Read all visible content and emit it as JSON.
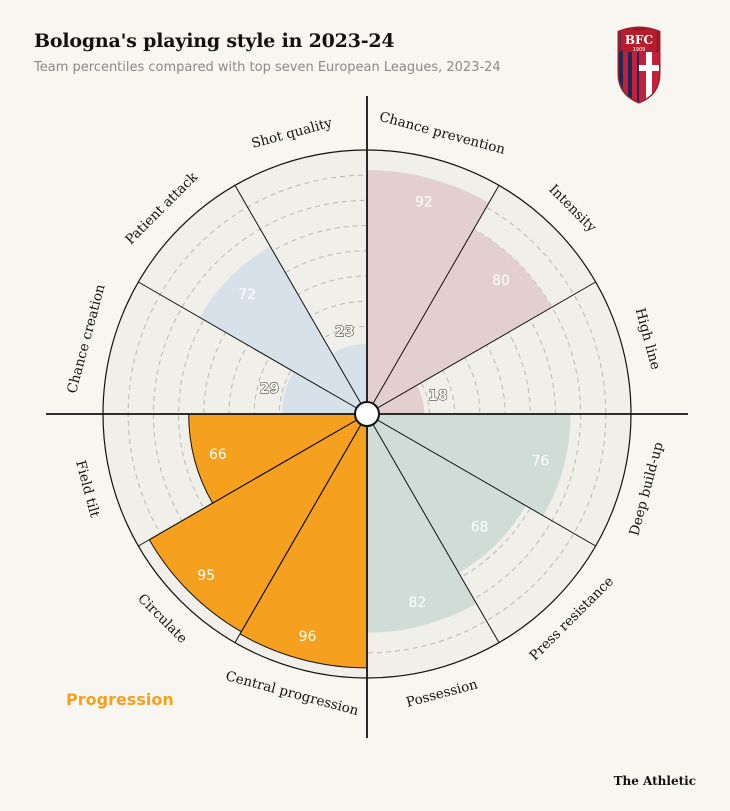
{
  "header": {
    "title": "Bologna's playing style in 2023-24",
    "subtitle": "Team percentiles compared with top seven European Leagues, 2023-24"
  },
  "crest": {
    "text": "BFC",
    "year": "1909"
  },
  "credit": "The Athletic",
  "legend": {
    "label": "Progression",
    "color": "#f5a01f"
  },
  "colors": {
    "background": "#f7f6f1",
    "ring_fill": "#f0efe9",
    "defence": "#e3cfcf",
    "attack": "#d7e1ea",
    "possession": "#cfdcd8",
    "progression": "#f5a01f"
  },
  "chart_data": {
    "type": "radial-bar",
    "rlim": [
      0,
      100
    ],
    "categories": [
      {
        "label": "Chance prevention",
        "value": 92,
        "group": "defence"
      },
      {
        "label": "Intensity",
        "value": 80,
        "group": "defence"
      },
      {
        "label": "High line",
        "value": 18,
        "group": "defence"
      },
      {
        "label": "Deep build-up",
        "value": 76,
        "group": "possession"
      },
      {
        "label": "Press resistance",
        "value": 68,
        "group": "possession"
      },
      {
        "label": "Possession",
        "value": 82,
        "group": "possession"
      },
      {
        "label": "Central progression",
        "value": 96,
        "group": "progression"
      },
      {
        "label": "Circulate",
        "value": 95,
        "group": "progression"
      },
      {
        "label": "Field tilt",
        "value": 66,
        "group": "progression"
      },
      {
        "label": "Chance creation",
        "value": 29,
        "group": "attack"
      },
      {
        "label": "Patient attack",
        "value": 72,
        "group": "attack"
      },
      {
        "label": "Shot quality",
        "value": 23,
        "group": "attack"
      }
    ]
  }
}
